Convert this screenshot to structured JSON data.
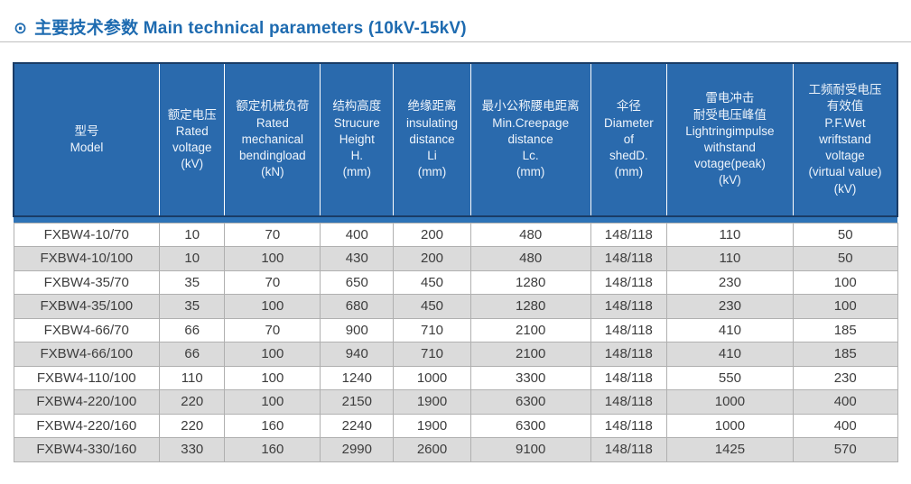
{
  "header": {
    "icon": "⊙",
    "title": "主要技术参数 Main technical parameters (10kV-15kV)"
  },
  "colors": {
    "title_blue": "#1e6bb0",
    "table_header_bg": "#2a6aad",
    "table_header_text": "#eef4fb",
    "navy_edge": "#1a3c66",
    "divider_band_blue": "#2e73b7",
    "row_alt_gray": "#dbdbdb",
    "cell_border_gray": "#b0b0b0"
  },
  "table": {
    "columns": [
      {
        "key": "model",
        "width": "16.5%",
        "lines": [
          "型号",
          "Model"
        ]
      },
      {
        "key": "rated-voltage",
        "width": "7.4%",
        "lines": [
          "额定电压",
          "Rated",
          "voltage",
          "(kV)"
        ]
      },
      {
        "key": "rated-mechanical-bending-load",
        "width": "10.8%",
        "lines": [
          "额定机械负荷",
          "Rated",
          "mechanical",
          "bendingload",
          "(kN)"
        ]
      },
      {
        "key": "structure-height",
        "width": "8.3%",
        "lines": [
          "结构高度",
          "Strucure",
          "Height",
          "H.",
          "(mm)"
        ]
      },
      {
        "key": "insulating-distance",
        "width": "8.7%",
        "lines": [
          "绝缘距离",
          "insulating",
          "distance",
          "Li",
          "(mm)"
        ]
      },
      {
        "key": "min-creepage-distance",
        "width": "13.6%",
        "lines": [
          "最小公称腰电距离",
          "Min.Creepage",
          "distance",
          "Lc.",
          "(mm)"
        ]
      },
      {
        "key": "shed-diameter",
        "width": "8.6%",
        "lines": [
          "伞径",
          "Diameter",
          "of",
          "shedD.",
          "(mm)"
        ]
      },
      {
        "key": "lightning-impulse-withstand",
        "width": "14.3%",
        "lines": [
          "雷电冲击",
          "耐受电压峰值",
          "Lightringimpulse",
          "withstand",
          "votage(peak)",
          "(kV)"
        ]
      },
      {
        "key": "pf-wet-withstand",
        "width": "11.8%",
        "lines": [
          "工频耐受电压",
          "有效值",
          "P.F.Wet",
          "wriftstand",
          "voltage",
          "(virtual value)",
          "(kV)"
        ]
      }
    ],
    "rows": [
      [
        "FXBW4-10/70",
        "10",
        "70",
        "400",
        "200",
        "480",
        "148/118",
        "110",
        "50"
      ],
      [
        "FXBW4-10/100",
        "10",
        "100",
        "430",
        "200",
        "480",
        "148/118",
        "110",
        "50"
      ],
      [
        "FXBW4-35/70",
        "35",
        "70",
        "650",
        "450",
        "1280",
        "148/118",
        "230",
        "100"
      ],
      [
        "FXBW4-35/100",
        "35",
        "100",
        "680",
        "450",
        "1280",
        "148/118",
        "230",
        "100"
      ],
      [
        "FXBW4-66/70",
        "66",
        "70",
        "900",
        "710",
        "2100",
        "148/118",
        "410",
        "185"
      ],
      [
        "FXBW4-66/100",
        "66",
        "100",
        "940",
        "710",
        "2100",
        "148/118",
        "410",
        "185"
      ],
      [
        "FXBW4-110/100",
        "110",
        "100",
        "1240",
        "1000",
        "3300",
        "148/118",
        "550",
        "230"
      ],
      [
        "FXBW4-220/100",
        "220",
        "100",
        "2150",
        "1900",
        "6300",
        "148/118",
        "1000",
        "400"
      ],
      [
        "FXBW4-220/160",
        "220",
        "160",
        "2240",
        "1900",
        "6300",
        "148/118",
        "1000",
        "400"
      ],
      [
        "FXBW4-330/160",
        "330",
        "160",
        "2990",
        "2600",
        "9100",
        "148/118",
        "1425",
        "570"
      ]
    ]
  }
}
